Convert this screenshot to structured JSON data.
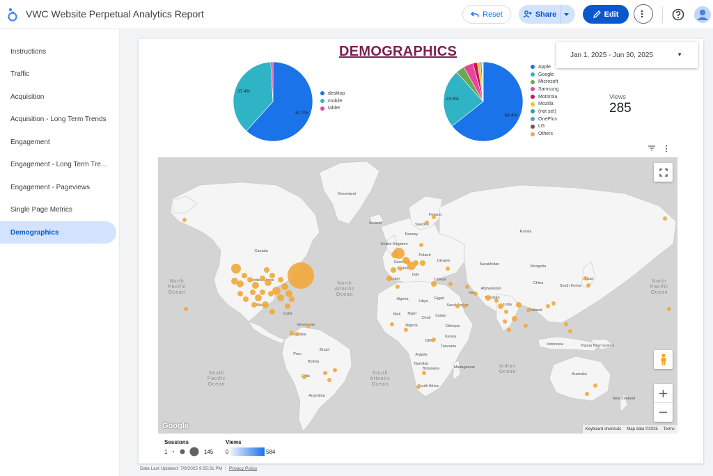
{
  "header": {
    "title": "VWC Website Perpetual Analytics Report",
    "reset_label": "Reset",
    "share_label": "Share",
    "edit_label": "Edit"
  },
  "sidebar": {
    "items": [
      {
        "label": "Instructions"
      },
      {
        "label": "Traffic"
      },
      {
        "label": "Acquisition"
      },
      {
        "label": "Acquisition - Long Term Trends"
      },
      {
        "label": "Engagement"
      },
      {
        "label": "Engagement - Long Term Tre..."
      },
      {
        "label": "Engagement - Pageviews"
      },
      {
        "label": "Single Page Metrics"
      },
      {
        "label": "Demographics",
        "active": true
      }
    ]
  },
  "report": {
    "page_title": "DEMOGRAPHICS",
    "date_range": "Jan 1, 2025 - Jun 30, 2025",
    "views_label": "Views",
    "views_value": "285",
    "footer_updated": "Data Last Updated: 7/9/2025 9:35:31 PM",
    "footer_privacy": "Privacy Policy"
  },
  "chart_data": [
    {
      "type": "pie",
      "labels": [
        "desktop",
        "mobile",
        "tablet"
      ],
      "values": [
        61.7,
        37.4,
        0.9
      ],
      "data_labels": [
        "61.7%",
        "37.4%",
        ""
      ],
      "colors": [
        "#1a73e8",
        "#2fb4c6",
        "#e8449c"
      ],
      "legend": "right"
    },
    {
      "type": "pie",
      "labels": [
        "Apple",
        "Google",
        "Microsoft",
        "Samsung",
        "Motorola",
        "Mozilla",
        "(not set)",
        "OnePlus",
        "LG",
        "Others"
      ],
      "values": [
        64.4,
        23.9,
        3.5,
        4.0,
        1.8,
        1.2,
        0.6,
        0.3,
        0.2,
        0.1
      ],
      "data_labels": [
        "64.4%",
        "23.9%",
        "",
        "",
        "",
        "",
        "",
        "",
        "",
        ""
      ],
      "colors": [
        "#1a73e8",
        "#2fb4c6",
        "#6aa84f",
        "#e8449c",
        "#c2185b",
        "#f6bf26",
        "#26a69a",
        "#5b9bd5",
        "#795548",
        "#f4a261"
      ],
      "legend": "right"
    }
  ],
  "map": {
    "ocean_labels": [
      {
        "text": "North Pacific Ocean",
        "lines": [
          "North",
          "Pacific",
          "Ocean"
        ]
      },
      {
        "text": "North Atlantic Ocean",
        "lines": [
          "North",
          "Atlantic",
          "Ocean"
        ]
      },
      {
        "text": "South Pacific Ocean",
        "lines": [
          "South",
          "Pacific",
          "Ocean"
        ]
      },
      {
        "text": "South Atlantic Ocean",
        "lines": [
          "South",
          "Atlantic",
          "Ocean"
        ]
      },
      {
        "text": "Indian Ocean",
        "lines": [
          "Indian",
          "Ocean"
        ]
      },
      {
        "text": "North Pacific Ocean (east)",
        "lines": [
          "North",
          "Pacific",
          "Ocean"
        ]
      }
    ],
    "place_labels": [
      "Greenland",
      "Iceland",
      "Finland",
      "Sweden",
      "Norway",
      "Russia",
      "Canada",
      "United States",
      "Mexico",
      "Cuba",
      "Venezuela",
      "Colombia",
      "Peru",
      "Brazil",
      "Bolivia",
      "Chile",
      "Argentina",
      "United Kingdom",
      "Germany",
      "Poland",
      "Ukraine",
      "France",
      "Spain",
      "Italy",
      "Kazakhstan",
      "Mongolia",
      "China",
      "Türkiye",
      "Iran",
      "Afghanistan",
      "Pakistan",
      "India",
      "Thailand",
      "South Korea",
      "Japan",
      "Algeria",
      "Libya",
      "Egypt",
      "Saudi Arabia",
      "Mali",
      "Niger",
      "Chad",
      "Sudan",
      "Ethiopia",
      "Nigeria",
      "DRC",
      "Kenya",
      "Tanzania",
      "Angola",
      "Namibia",
      "Botswana",
      "Madagascar",
      "South Africa",
      "Indonesia",
      "Papua New Guinea",
      "Australia",
      "New Zealand"
    ],
    "keyboard_shortcuts": "Keyboard shortcuts",
    "map_data": "Map data ©2025",
    "terms": "Terms",
    "google_logo": "Google"
  },
  "map_legend": {
    "sessions_title": "Sessions",
    "sessions_min": "1",
    "sessions_max": "145",
    "views_title": "Views",
    "views_min": "0",
    "views_max": "584"
  },
  "colors": {
    "accent": "#0b57d0",
    "bubble": "#f2a93b",
    "title": "#7b2152"
  }
}
